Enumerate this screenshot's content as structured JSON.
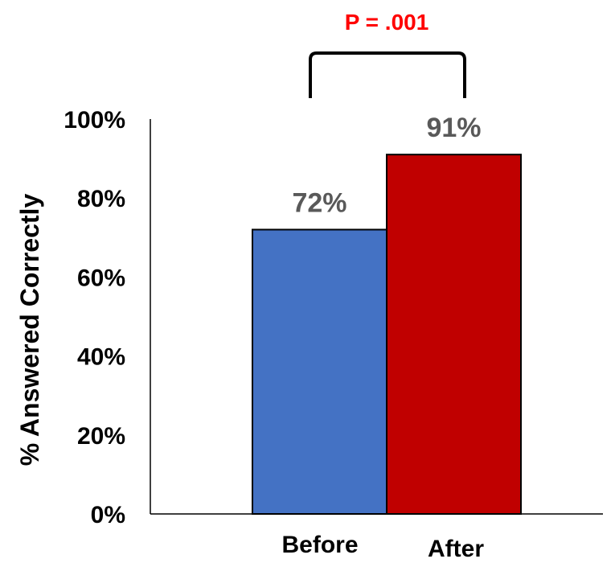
{
  "chart_data": {
    "type": "bar",
    "categories": [
      "Before",
      "After"
    ],
    "values": [
      72,
      91
    ],
    "data_labels": [
      "72%",
      "91%"
    ],
    "colors": [
      "#4472C4",
      "#C00000"
    ],
    "ylabel": "% Answered Correctly",
    "ylim": [
      0,
      100
    ],
    "yticks": [
      "0%",
      "20%",
      "40%",
      "60%",
      "80%",
      "100%"
    ],
    "ytick_values": [
      0,
      20,
      40,
      60,
      80,
      100
    ],
    "grid": false,
    "legend": "none",
    "annotation": {
      "text": "P = .001",
      "color": "#FF0000"
    }
  }
}
